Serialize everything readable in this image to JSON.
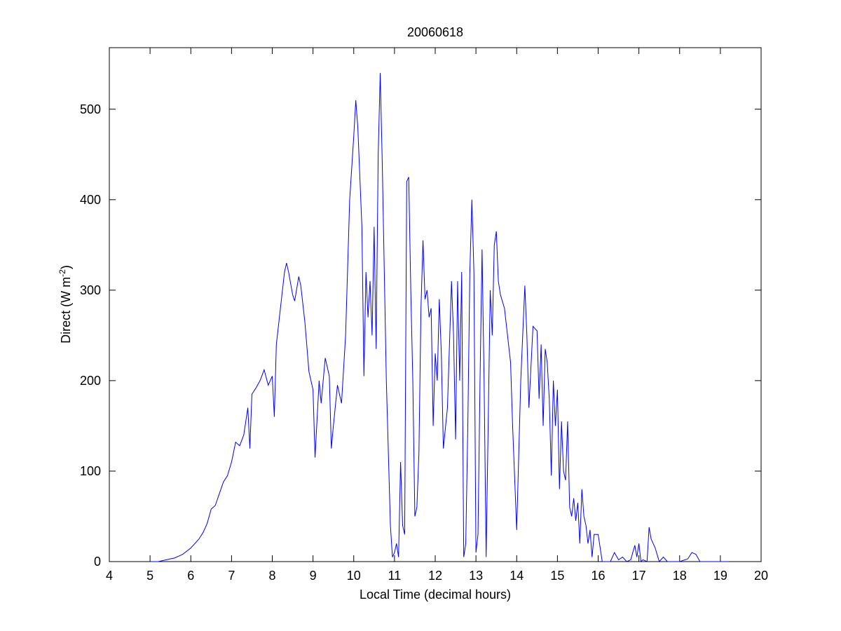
{
  "chart_data": {
    "type": "line",
    "title": "20060618",
    "xlabel": "Local Time (decimal hours)",
    "ylabel": [
      "Direct (W m",
      "-2",
      ")"
    ],
    "xlim": [
      4,
      20
    ],
    "xticks": [
      4,
      5,
      6,
      7,
      8,
      9,
      10,
      11,
      12,
      13,
      14,
      15,
      16,
      17,
      18,
      19,
      20
    ],
    "ylim": [
      0,
      568
    ],
    "yticks": [
      0,
      100,
      200,
      300,
      400,
      500
    ],
    "grid": false,
    "box": true,
    "x": [
      5.0,
      5.2,
      5.4,
      5.6,
      5.8,
      6.0,
      6.1,
      6.2,
      6.3,
      6.4,
      6.5,
      6.6,
      6.7,
      6.8,
      6.9,
      7.0,
      7.1,
      7.2,
      7.3,
      7.4,
      7.45,
      7.5,
      7.6,
      7.7,
      7.8,
      7.9,
      8.0,
      8.05,
      8.1,
      8.2,
      8.3,
      8.35,
      8.4,
      8.5,
      8.55,
      8.65,
      8.7,
      8.8,
      8.9,
      9.0,
      9.05,
      9.15,
      9.2,
      9.3,
      9.4,
      9.45,
      9.5,
      9.6,
      9.7,
      9.8,
      9.9,
      10.0,
      10.05,
      10.1,
      10.2,
      10.25,
      10.3,
      10.35,
      10.4,
      10.45,
      10.5,
      10.55,
      10.6,
      10.65,
      10.7,
      10.8,
      10.9,
      10.95,
      11.0,
      11.05,
      11.1,
      11.15,
      11.2,
      11.25,
      11.3,
      11.35,
      11.4,
      11.45,
      11.5,
      11.55,
      11.6,
      11.65,
      11.7,
      11.75,
      11.8,
      11.85,
      11.9,
      11.95,
      12.0,
      12.05,
      12.1,
      12.15,
      12.2,
      12.3,
      12.4,
      12.45,
      12.5,
      12.55,
      12.6,
      12.65,
      12.7,
      12.75,
      12.8,
      12.85,
      12.9,
      12.95,
      13.0,
      13.05,
      13.1,
      13.15,
      13.2,
      13.25,
      13.3,
      13.35,
      13.4,
      13.45,
      13.5,
      13.55,
      13.6,
      13.7,
      13.8,
      13.85,
      13.9,
      14.0,
      14.1,
      14.2,
      14.25,
      14.3,
      14.4,
      14.5,
      14.55,
      14.6,
      14.65,
      14.7,
      14.75,
      14.8,
      14.85,
      14.9,
      14.95,
      15.0,
      15.05,
      15.1,
      15.15,
      15.2,
      15.25,
      15.3,
      15.35,
      15.4,
      15.45,
      15.5,
      15.55,
      15.6,
      15.65,
      15.7,
      15.75,
      15.8,
      15.85,
      15.9,
      16.0,
      16.1,
      16.3,
      16.4,
      16.5,
      16.6,
      16.7,
      16.8,
      16.9,
      16.95,
      17.0,
      17.05,
      17.1,
      17.2,
      17.25,
      17.3,
      17.4,
      17.5,
      17.6,
      17.7,
      18.0,
      18.2,
      18.3,
      18.4,
      18.5,
      18.7,
      19.0,
      19.2
    ],
    "series": [
      {
        "color": "#0000ff",
        "values": [
          0,
          0,
          2,
          4,
          8,
          15,
          20,
          25,
          32,
          42,
          58,
          62,
          75,
          88,
          95,
          110,
          132,
          128,
          140,
          170,
          125,
          185,
          192,
          200,
          212,
          195,
          205,
          160,
          240,
          280,
          320,
          330,
          320,
          295,
          288,
          315,
          305,
          265,
          210,
          190,
          115,
          200,
          175,
          225,
          205,
          125,
          150,
          195,
          175,
          250,
          400,
          470,
          510,
          480,
          370,
          205,
          320,
          270,
          310,
          250,
          370,
          235,
          450,
          540,
          440,
          200,
          40,
          5,
          10,
          20,
          5,
          110,
          40,
          30,
          420,
          425,
          300,
          200,
          50,
          60,
          120,
          280,
          355,
          290,
          300,
          270,
          280,
          150,
          230,
          200,
          290,
          230,
          125,
          170,
          310,
          250,
          135,
          310,
          200,
          320,
          5,
          20,
          150,
          320,
          400,
          320,
          10,
          30,
          200,
          345,
          200,
          5,
          150,
          300,
          250,
          350,
          365,
          310,
          295,
          280,
          240,
          220,
          150,
          35,
          200,
          305,
          250,
          170,
          260,
          255,
          180,
          240,
          150,
          235,
          220,
          180,
          95,
          200,
          150,
          190,
          80,
          155,
          100,
          90,
          155,
          60,
          50,
          70,
          45,
          65,
          20,
          80,
          50,
          40,
          20,
          35,
          5,
          30,
          30,
          0,
          0,
          10,
          2,
          5,
          0,
          2,
          18,
          5,
          20,
          0,
          2,
          0,
          38,
          25,
          15,
          0,
          5,
          0,
          0,
          3,
          10,
          8,
          0,
          0,
          0,
          0
        ]
      }
    ]
  }
}
